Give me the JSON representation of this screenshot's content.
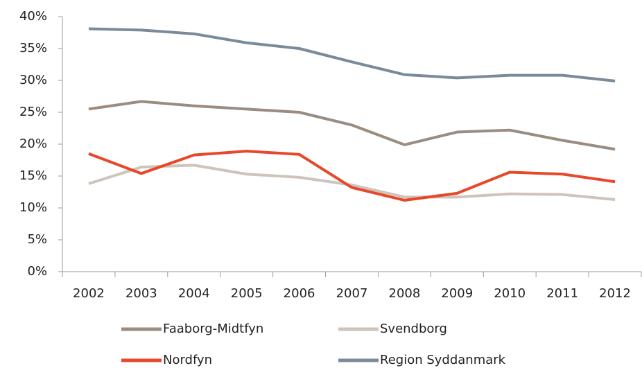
{
  "chart_data": {
    "type": "line",
    "categories": [
      "2002",
      "2003",
      "2004",
      "2005",
      "2006",
      "2007",
      "2008",
      "2009",
      "2010",
      "2011",
      "2012"
    ],
    "series": [
      {
        "name": "Faaborg-Midtfyn",
        "color": "#9a8c80",
        "values": [
          25.5,
          26.7,
          26.0,
          25.5,
          25.0,
          23.0,
          19.9,
          21.9,
          22.2,
          20.6,
          19.2
        ]
      },
      {
        "name": "Svendborg",
        "color": "#cdc4ba",
        "values": [
          13.8,
          16.4,
          16.7,
          15.3,
          14.8,
          13.6,
          11.7,
          11.7,
          12.2,
          12.1,
          11.3
        ]
      },
      {
        "name": "Nordfyn",
        "color": "#e8472a",
        "values": [
          18.5,
          15.4,
          18.3,
          18.9,
          18.4,
          13.2,
          11.2,
          12.3,
          15.6,
          15.3,
          14.1
        ]
      },
      {
        "name": "Region Syddanmark",
        "color": "#7a8a99",
        "values": [
          38.1,
          37.9,
          37.3,
          35.9,
          35.0,
          32.9,
          30.9,
          30.4,
          30.8,
          30.8,
          29.9
        ]
      }
    ],
    "ylim": [
      0,
      40
    ],
    "yticks": [
      {
        "value": 0,
        "label": "0%"
      },
      {
        "value": 5,
        "label": "5%"
      },
      {
        "value": 10,
        "label": "10%"
      },
      {
        "value": 15,
        "label": "15%"
      },
      {
        "value": 20,
        "label": "20%"
      },
      {
        "value": 25,
        "label": "25%"
      },
      {
        "value": 30,
        "label": "30%"
      },
      {
        "value": 35,
        "label": "35%"
      },
      {
        "value": 40,
        "label": "40%"
      }
    ]
  }
}
